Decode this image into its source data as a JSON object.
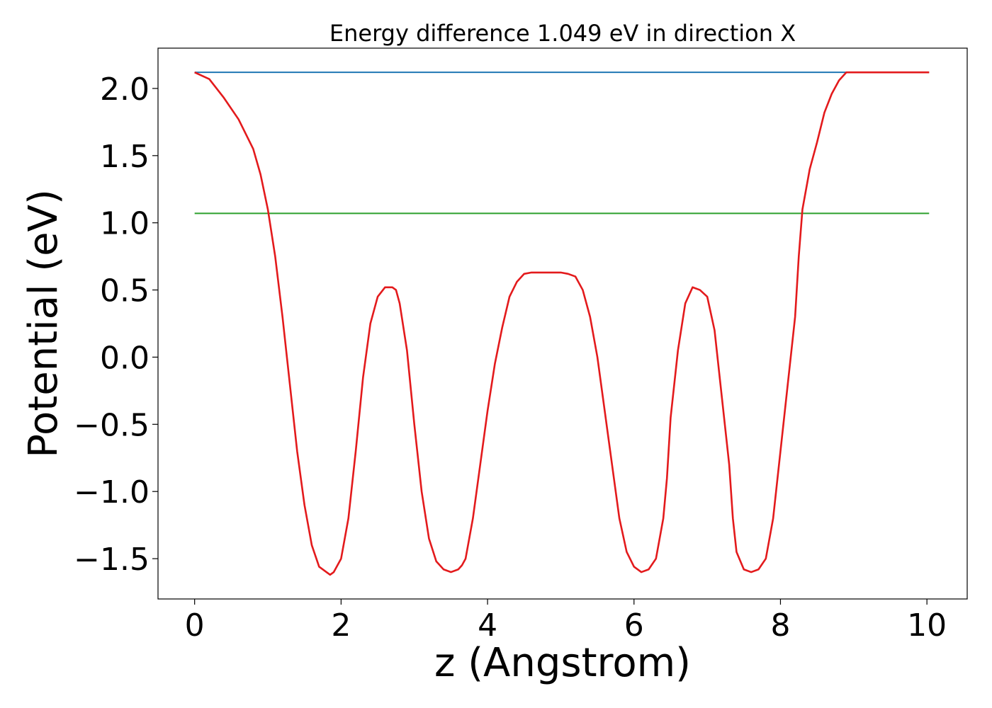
{
  "chart_data": {
    "type": "line",
    "title": "Energy difference 1.049 eV in direction X",
    "xlabel": "z (Angstrom)",
    "ylabel": "Potential (eV)",
    "xlim": [
      -0.5,
      10.55
    ],
    "ylim": [
      -1.8,
      2.3
    ],
    "xticks": [
      0,
      2,
      4,
      6,
      8,
      10
    ],
    "yticks": [
      -1.5,
      -1.0,
      -0.5,
      0.0,
      0.5,
      1.0,
      1.5,
      2.0
    ],
    "ytick_labels": [
      "−1.5",
      "−1.0",
      "−0.5",
      "0.0",
      "0.5",
      "1.0",
      "1.5",
      "2.0"
    ],
    "grid": false,
    "series": [
      {
        "color": "#1f77b4",
        "x": [
          0.0,
          10.03
        ],
        "y": [
          2.12,
          2.12
        ]
      },
      {
        "color": "#2ca02c",
        "x": [
          0.0,
          10.03
        ],
        "y": [
          1.07,
          1.07
        ]
      },
      {
        "color": "#e31a1c",
        "x": [
          0.0,
          0.2,
          0.4,
          0.6,
          0.8,
          0.9,
          1.0,
          1.1,
          1.2,
          1.3,
          1.4,
          1.5,
          1.6,
          1.7,
          1.8,
          1.85,
          1.9,
          2.0,
          2.1,
          2.2,
          2.3,
          2.4,
          2.5,
          2.6,
          2.7,
          2.75,
          2.8,
          2.9,
          3.0,
          3.1,
          3.2,
          3.3,
          3.4,
          3.5,
          3.6,
          3.65,
          3.7,
          3.8,
          3.9,
          4.0,
          4.1,
          4.2,
          4.3,
          4.4,
          4.5,
          4.6,
          4.7,
          4.8,
          4.9,
          5.0,
          5.1,
          5.2,
          5.3,
          5.4,
          5.5,
          5.6,
          5.7,
          5.8,
          5.9,
          6.0,
          6.1,
          6.2,
          6.3,
          6.4,
          6.45,
          6.5,
          6.6,
          6.7,
          6.8,
          6.9,
          7.0,
          7.1,
          7.2,
          7.3,
          7.35,
          7.4,
          7.5,
          7.6,
          7.7,
          7.8,
          7.9,
          8.0,
          8.1,
          8.2,
          8.25,
          8.3,
          8.4,
          8.5,
          8.6,
          8.7,
          8.8,
          8.9,
          9.0,
          9.1,
          9.2,
          9.3,
          9.5,
          9.7,
          9.9,
          10.03
        ],
        "y": [
          2.12,
          2.07,
          1.93,
          1.77,
          1.55,
          1.36,
          1.1,
          0.75,
          0.3,
          -0.2,
          -0.7,
          -1.1,
          -1.4,
          -1.56,
          -1.6,
          -1.62,
          -1.6,
          -1.5,
          -1.2,
          -0.7,
          -0.15,
          0.25,
          0.45,
          0.52,
          0.52,
          0.5,
          0.4,
          0.05,
          -0.5,
          -1.0,
          -1.35,
          -1.52,
          -1.58,
          -1.6,
          -1.58,
          -1.55,
          -1.5,
          -1.2,
          -0.8,
          -0.4,
          -0.05,
          0.22,
          0.45,
          0.56,
          0.62,
          0.63,
          0.63,
          0.63,
          0.63,
          0.63,
          0.62,
          0.6,
          0.5,
          0.3,
          0.0,
          -0.4,
          -0.8,
          -1.2,
          -1.45,
          -1.56,
          -1.6,
          -1.58,
          -1.5,
          -1.2,
          -0.9,
          -0.45,
          0.05,
          0.4,
          0.52,
          0.5,
          0.45,
          0.2,
          -0.3,
          -0.8,
          -1.2,
          -1.45,
          -1.58,
          -1.6,
          -1.58,
          -1.5,
          -1.2,
          -0.7,
          -0.2,
          0.3,
          0.75,
          1.1,
          1.4,
          1.6,
          1.82,
          1.96,
          2.06,
          2.12,
          2.12,
          2.12,
          2.12,
          2.12,
          2.12,
          2.12,
          2.12,
          2.12
        ]
      }
    ]
  }
}
